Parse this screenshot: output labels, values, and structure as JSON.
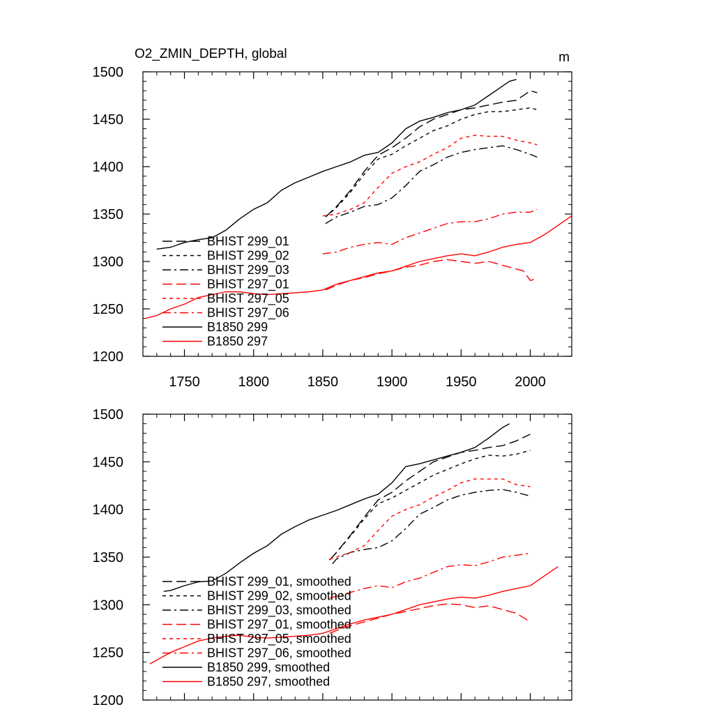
{
  "chart_data": [
    {
      "type": "line",
      "title": "O2_ZMIN_DEPTH, global",
      "units": "m",
      "xlim": [
        1720,
        2030
      ],
      "ylim": [
        1200,
        1500
      ],
      "x_ticks": [
        1750,
        1800,
        1850,
        1900,
        1950,
        2000
      ],
      "y_ticks": [
        1200,
        1250,
        1300,
        1350,
        1400,
        1450,
        1500
      ],
      "grid": false,
      "legend_placement": "bottom-left",
      "series": [
        {
          "name": "BHIST 299_01",
          "color": "#000000",
          "dash": "long-dash",
          "x": [
            1852,
            1860,
            1870,
            1880,
            1890,
            1900,
            1910,
            1920,
            1930,
            1940,
            1950,
            1960,
            1970,
            1980,
            1990,
            2000,
            2005
          ],
          "y": [
            1347,
            1358,
            1375,
            1395,
            1412,
            1420,
            1430,
            1442,
            1450,
            1455,
            1460,
            1462,
            1465,
            1468,
            1470,
            1480,
            1478
          ]
        },
        {
          "name": "BHIST 299_02",
          "color": "#000000",
          "dash": "short-dash",
          "x": [
            1852,
            1860,
            1870,
            1880,
            1890,
            1900,
            1910,
            1920,
            1930,
            1940,
            1950,
            1960,
            1970,
            1980,
            1990,
            2000,
            2005
          ],
          "y": [
            1347,
            1357,
            1373,
            1392,
            1408,
            1413,
            1422,
            1430,
            1438,
            1443,
            1450,
            1455,
            1458,
            1458,
            1460,
            1462,
            1460
          ]
        },
        {
          "name": "BHIST 299_03",
          "color": "#000000",
          "dash": "dash-dot",
          "x": [
            1852,
            1860,
            1870,
            1880,
            1890,
            1900,
            1910,
            1920,
            1930,
            1940,
            1950,
            1960,
            1970,
            1980,
            1990,
            2000,
            2005
          ],
          "y": [
            1340,
            1347,
            1352,
            1358,
            1360,
            1367,
            1380,
            1395,
            1402,
            1410,
            1415,
            1418,
            1420,
            1422,
            1418,
            1413,
            1410
          ]
        },
        {
          "name": "BHIST 297_01",
          "color": "#ff0000",
          "dash": "long-dash",
          "x": [
            1852,
            1860,
            1870,
            1880,
            1890,
            1900,
            1910,
            1920,
            1930,
            1940,
            1950,
            1960,
            1970,
            1980,
            1990,
            1995,
            2000,
            2005
          ],
          "y": [
            1270,
            1275,
            1280,
            1283,
            1287,
            1290,
            1294,
            1296,
            1300,
            1302,
            1300,
            1298,
            1300,
            1296,
            1292,
            1290,
            1280,
            1282
          ]
        },
        {
          "name": "BHIST 297_05",
          "color": "#ff0000",
          "dash": "short-dash",
          "x": [
            1850,
            1860,
            1870,
            1880,
            1890,
            1900,
            1910,
            1920,
            1930,
            1940,
            1950,
            1960,
            1970,
            1980,
            1990,
            2000,
            2005
          ],
          "y": [
            1348,
            1350,
            1355,
            1362,
            1378,
            1393,
            1400,
            1405,
            1413,
            1420,
            1430,
            1433,
            1432,
            1432,
            1428,
            1425,
            1423
          ]
        },
        {
          "name": "BHIST 297_06",
          "color": "#ff0000",
          "dash": "dash-dot",
          "x": [
            1850,
            1860,
            1870,
            1880,
            1890,
            1900,
            1910,
            1920,
            1930,
            1940,
            1950,
            1960,
            1970,
            1980,
            1990,
            2000,
            2005
          ],
          "y": [
            1308,
            1310,
            1315,
            1318,
            1320,
            1318,
            1325,
            1330,
            1335,
            1340,
            1342,
            1342,
            1345,
            1350,
            1352,
            1352,
            1355
          ]
        },
        {
          "name": "B1850 299",
          "color": "#000000",
          "dash": "solid",
          "x": [
            1730,
            1740,
            1750,
            1760,
            1770,
            1780,
            1790,
            1800,
            1810,
            1820,
            1830,
            1840,
            1850,
            1860,
            1870,
            1880,
            1890,
            1900,
            1910,
            1920,
            1930,
            1940,
            1950,
            1960,
            1970,
            1980,
            1985,
            1990
          ],
          "y": [
            1313,
            1315,
            1320,
            1323,
            1325,
            1333,
            1345,
            1355,
            1362,
            1375,
            1383,
            1389,
            1395,
            1400,
            1405,
            1412,
            1415,
            1425,
            1440,
            1448,
            1452,
            1457,
            1460,
            1465,
            1475,
            1485,
            1490,
            1492
          ]
        },
        {
          "name": "B1850 297",
          "color": "#ff0000",
          "dash": "solid",
          "x": [
            1722,
            1730,
            1740,
            1750,
            1760,
            1770,
            1780,
            1790,
            1800,
            1810,
            1820,
            1830,
            1840,
            1850,
            1860,
            1870,
            1880,
            1890,
            1900,
            1910,
            1920,
            1930,
            1940,
            1950,
            1960,
            1970,
            1980,
            1990,
            2000,
            2010,
            2020,
            2030
          ],
          "y": [
            1240,
            1243,
            1250,
            1255,
            1262,
            1265,
            1268,
            1268,
            1266,
            1265,
            1266,
            1267,
            1268,
            1270,
            1276,
            1280,
            1284,
            1288,
            1290,
            1295,
            1300,
            1303,
            1306,
            1308,
            1306,
            1310,
            1315,
            1318,
            1320,
            1328,
            1338,
            1348
          ]
        }
      ]
    },
    {
      "type": "line",
      "title": "",
      "units": "",
      "xlim": [
        1720,
        2030
      ],
      "ylim": [
        1200,
        1500
      ],
      "x_ticks": [
        1750,
        1800,
        1850,
        1900,
        1950,
        2000
      ],
      "y_ticks": [
        1200,
        1250,
        1300,
        1350,
        1400,
        1450,
        1500
      ],
      "grid": false,
      "legend_placement": "bottom-left",
      "series": [
        {
          "name": "BHIST 299_01, smoothed",
          "color": "#000000",
          "dash": "long-dash",
          "x": [
            1855,
            1860,
            1870,
            1880,
            1890,
            1900,
            1910,
            1920,
            1930,
            1940,
            1950,
            1960,
            1970,
            1980,
            1990,
            2000
          ],
          "y": [
            1347,
            1355,
            1373,
            1392,
            1410,
            1418,
            1430,
            1440,
            1450,
            1455,
            1460,
            1462,
            1465,
            1467,
            1472,
            1479
          ]
        },
        {
          "name": "BHIST 299_02, smoothed",
          "color": "#000000",
          "dash": "short-dash",
          "x": [
            1855,
            1860,
            1870,
            1880,
            1890,
            1900,
            1910,
            1920,
            1930,
            1940,
            1950,
            1960,
            1970,
            1980,
            1990,
            2000
          ],
          "y": [
            1347,
            1355,
            1372,
            1390,
            1406,
            1412,
            1420,
            1428,
            1436,
            1442,
            1448,
            1453,
            1457,
            1456,
            1458,
            1462
          ]
        },
        {
          "name": "BHIST 299_03, smoothed",
          "color": "#000000",
          "dash": "dash-dot",
          "x": [
            1857,
            1860,
            1870,
            1880,
            1890,
            1900,
            1910,
            1920,
            1930,
            1940,
            1950,
            1960,
            1970,
            1980,
            1990,
            2000
          ],
          "y": [
            1343,
            1348,
            1355,
            1358,
            1360,
            1367,
            1380,
            1395,
            1402,
            1410,
            1415,
            1418,
            1420,
            1421,
            1418,
            1414
          ]
        },
        {
          "name": "BHIST 297_01, smoothed",
          "color": "#ff0000",
          "dash": "long-dash",
          "x": [
            1855,
            1860,
            1870,
            1880,
            1890,
            1900,
            1910,
            1920,
            1930,
            1940,
            1950,
            1960,
            1970,
            1980,
            1990,
            2000
          ],
          "y": [
            1270,
            1273,
            1278,
            1282,
            1286,
            1290,
            1293,
            1296,
            1299,
            1301,
            1300,
            1297,
            1299,
            1295,
            1291,
            1282
          ]
        },
        {
          "name": "BHIST 297_05, smoothed",
          "color": "#ff0000",
          "dash": "short-dash",
          "x": [
            1855,
            1860,
            1870,
            1880,
            1890,
            1900,
            1910,
            1920,
            1930,
            1940,
            1950,
            1960,
            1970,
            1980,
            1990,
            2000
          ],
          "y": [
            1348,
            1350,
            1355,
            1362,
            1378,
            1393,
            1400,
            1405,
            1413,
            1420,
            1428,
            1432,
            1432,
            1432,
            1426,
            1424
          ]
        },
        {
          "name": "BHIST 297_06, smoothed",
          "color": "#ff0000",
          "dash": "dash-dot",
          "x": [
            1855,
            1860,
            1870,
            1880,
            1890,
            1900,
            1910,
            1920,
            1930,
            1940,
            1950,
            1960,
            1970,
            1980,
            1990,
            2000
          ],
          "y": [
            1307,
            1309,
            1313,
            1317,
            1320,
            1318,
            1324,
            1328,
            1334,
            1340,
            1342,
            1341,
            1345,
            1350,
            1352,
            1354
          ]
        },
        {
          "name": "B1850 299, smoothed",
          "color": "#000000",
          "dash": "solid",
          "x": [
            1735,
            1740,
            1750,
            1760,
            1770,
            1780,
            1790,
            1800,
            1810,
            1820,
            1830,
            1840,
            1850,
            1860,
            1870,
            1880,
            1890,
            1900,
            1910,
            1920,
            1930,
            1940,
            1950,
            1960,
            1970,
            1980,
            1985
          ],
          "y": [
            1314,
            1315,
            1320,
            1324,
            1325,
            1333,
            1344,
            1354,
            1362,
            1374,
            1382,
            1389,
            1394,
            1399,
            1405,
            1411,
            1416,
            1428,
            1445,
            1448,
            1452,
            1456,
            1460,
            1465,
            1475,
            1486,
            1490
          ]
        },
        {
          "name": "B1850 297, smoothed",
          "color": "#ff0000",
          "dash": "solid",
          "x": [
            1725,
            1730,
            1740,
            1750,
            1760,
            1770,
            1780,
            1790,
            1800,
            1810,
            1820,
            1830,
            1840,
            1850,
            1860,
            1870,
            1880,
            1890,
            1900,
            1910,
            1920,
            1930,
            1940,
            1950,
            1960,
            1970,
            1980,
            1990,
            2000,
            2010,
            2020
          ],
          "y": [
            1238,
            1242,
            1250,
            1256,
            1262,
            1265,
            1267,
            1268,
            1266,
            1265,
            1266,
            1267,
            1268,
            1270,
            1275,
            1280,
            1284,
            1287,
            1290,
            1295,
            1300,
            1303,
            1306,
            1308,
            1307,
            1310,
            1314,
            1317,
            1320,
            1330,
            1340
          ]
        }
      ]
    }
  ]
}
